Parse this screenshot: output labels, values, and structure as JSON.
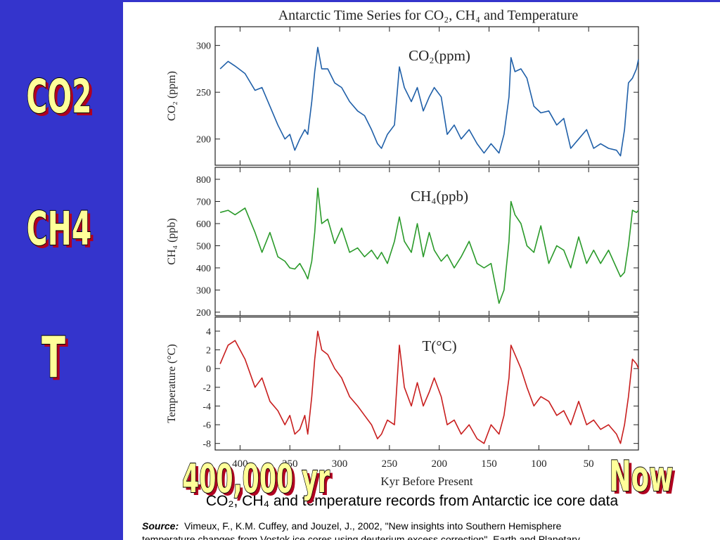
{
  "slide": {
    "labels": [
      "CO2",
      "CH4",
      "T"
    ],
    "overlays": [
      "400,000 yr",
      "Now"
    ],
    "caption": "CO₂, CH₄ and temperature records from Antarctic ice core data",
    "source_label": "Source:",
    "source_lines": [
      "Vimeux, F., K.M. Cuffey, and Jouzel, J., 2002, \"New insights into Southern Hemisphere",
      "temperature changes from Vostok ice cores using deuterium excess correction\", Earth and Planetary"
    ]
  },
  "chart_data": [
    {
      "type": "line",
      "title": "Antarctic Time Series for CO₂, CH₄ and Temperature",
      "annotation": "CO₂(ppm)",
      "ylabel": "CO₂ (ppm)",
      "color": "#1f5fa8",
      "xlim": [
        425,
        0
      ],
      "xticks": [
        400,
        350,
        300,
        250,
        200,
        150,
        100,
        50
      ],
      "ylim": [
        172,
        320
      ],
      "yticks": [
        200,
        250,
        300
      ],
      "x": [
        420,
        412,
        405,
        395,
        385,
        378,
        370,
        362,
        355,
        350,
        345,
        340,
        335,
        332,
        328,
        325,
        322,
        318,
        312,
        305,
        298,
        290,
        282,
        275,
        268,
        262,
        258,
        252,
        245,
        240,
        235,
        228,
        222,
        216,
        210,
        205,
        198,
        192,
        185,
        178,
        170,
        162,
        155,
        148,
        140,
        135,
        130,
        128,
        124,
        118,
        112,
        105,
        98,
        90,
        82,
        75,
        68,
        60,
        52,
        45,
        38,
        30,
        22,
        18,
        14,
        10,
        6,
        2,
        0
      ],
      "values": [
        275,
        283,
        278,
        270,
        252,
        255,
        235,
        215,
        200,
        205,
        188,
        200,
        210,
        205,
        240,
        272,
        298,
        275,
        275,
        260,
        255,
        240,
        230,
        225,
        210,
        195,
        190,
        205,
        215,
        277,
        255,
        240,
        255,
        230,
        245,
        255,
        245,
        205,
        215,
        200,
        210,
        195,
        185,
        195,
        185,
        205,
        245,
        287,
        272,
        275,
        265,
        235,
        228,
        230,
        215,
        222,
        190,
        200,
        210,
        190,
        195,
        190,
        188,
        182,
        210,
        260,
        265,
        275,
        285
      ]
    },
    {
      "type": "line",
      "annotation": "CH₄(ppb)",
      "ylabel": "CH₄ (ppb)",
      "color": "#2a9a2a",
      "xlim": [
        425,
        0
      ],
      "xticks": [
        400,
        350,
        300,
        250,
        200,
        150,
        100,
        50
      ],
      "ylim": [
        184,
        854
      ],
      "yticks": [
        200,
        300,
        400,
        500,
        600,
        700,
        800
      ],
      "x": [
        420,
        412,
        405,
        395,
        385,
        378,
        370,
        362,
        355,
        350,
        345,
        340,
        335,
        332,
        328,
        325,
        322,
        318,
        312,
        305,
        298,
        290,
        282,
        275,
        268,
        262,
        258,
        252,
        245,
        240,
        235,
        228,
        222,
        216,
        210,
        205,
        198,
        192,
        185,
        178,
        170,
        162,
        155,
        148,
        140,
        135,
        130,
        128,
        124,
        118,
        112,
        105,
        98,
        90,
        82,
        75,
        68,
        60,
        52,
        45,
        38,
        30,
        22,
        18,
        14,
        10,
        6,
        2,
        0
      ],
      "values": [
        650,
        660,
        640,
        670,
        560,
        470,
        560,
        450,
        430,
        400,
        395,
        420,
        380,
        350,
        430,
        560,
        760,
        600,
        620,
        510,
        580,
        470,
        490,
        450,
        480,
        440,
        470,
        420,
        520,
        630,
        520,
        470,
        600,
        450,
        560,
        480,
        430,
        460,
        400,
        450,
        520,
        420,
        400,
        420,
        240,
        300,
        520,
        700,
        640,
        600,
        500,
        470,
        590,
        420,
        500,
        480,
        400,
        540,
        420,
        480,
        420,
        480,
        400,
        360,
        380,
        500,
        660,
        650,
        660
      ]
    },
    {
      "type": "line",
      "annotation": "T(°C)",
      "ylabel": "Temperature (°C)",
      "xlabel": "Kyr Before Present",
      "color": "#c81e1e",
      "xlim": [
        425,
        0
      ],
      "xticks": [
        400,
        350,
        300,
        250,
        200,
        150,
        100,
        50
      ],
      "ylim": [
        -8.7,
        5.5
      ],
      "yticks": [
        -8,
        -6,
        -4,
        -2,
        0,
        2,
        4
      ],
      "x": [
        420,
        412,
        405,
        395,
        385,
        378,
        370,
        362,
        355,
        350,
        345,
        340,
        335,
        332,
        328,
        325,
        322,
        318,
        312,
        305,
        298,
        290,
        282,
        275,
        268,
        262,
        258,
        252,
        245,
        240,
        235,
        228,
        222,
        216,
        210,
        205,
        198,
        192,
        185,
        178,
        170,
        162,
        155,
        148,
        140,
        135,
        130,
        128,
        124,
        118,
        112,
        105,
        98,
        90,
        82,
        75,
        68,
        60,
        52,
        45,
        38,
        30,
        22,
        18,
        14,
        10,
        6,
        2,
        0
      ],
      "values": [
        0.5,
        2.5,
        3,
        1,
        -2,
        -1,
        -3.5,
        -4.5,
        -6,
        -5,
        -7,
        -6.5,
        -5,
        -7,
        -3,
        1,
        4,
        2,
        1.5,
        0,
        -1,
        -3,
        -4,
        -5,
        -6,
        -7.5,
        -7,
        -5.5,
        -6,
        2.5,
        -2,
        -4,
        -1.5,
        -4,
        -2.5,
        -1,
        -3,
        -6,
        -5.5,
        -7,
        -6,
        -7.5,
        -8,
        -6,
        -7,
        -5,
        -1,
        2.5,
        1.5,
        0,
        -2,
        -4,
        -3,
        -3.5,
        -5,
        -4.5,
        -6,
        -3.5,
        -6,
        -5.5,
        -6.5,
        -6,
        -7,
        -8,
        -6,
        -3,
        1,
        0.5,
        0
      ]
    }
  ]
}
